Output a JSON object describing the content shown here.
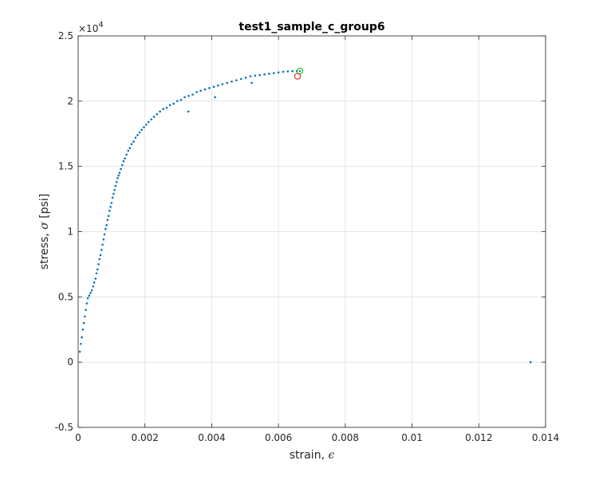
{
  "chart_data": {
    "type": "scatter",
    "title": "test1_sample_c_group6",
    "xlabel": "strain, ",
    "xlabel_symbol": "ϵ",
    "ylabel": "stress, ",
    "ylabel_symbol": "σ",
    "ylabel_unit": " [psi]",
    "y_exponent_base": "×10",
    "y_exponent_power": "4",
    "xlim": [
      0,
      0.014
    ],
    "ylim": [
      -5000,
      25000
    ],
    "x_ticks": [
      0,
      0.002,
      0.004,
      0.006,
      0.008,
      0.01,
      0.012,
      0.014
    ],
    "x_tick_labels": [
      "0",
      "0.002",
      "0.004",
      "0.006",
      "0.008",
      "0.01",
      "0.012",
      "0.014"
    ],
    "y_ticks": [
      -5000,
      0,
      5000,
      10000,
      15000,
      20000,
      25000
    ],
    "y_tick_labels": [
      "-0.5",
      "0",
      "0.5",
      "1",
      "1.5",
      "2",
      "2.5"
    ],
    "grid": true,
    "series": [
      {
        "marker": "dot",
        "color": "#0072BD",
        "points": [
          [
            5e-05,
            800
          ],
          [
            8e-05,
            1400
          ],
          [
            0.00011,
            1900
          ],
          [
            0.00014,
            2500
          ],
          [
            0.00017,
            3000
          ],
          [
            0.0002,
            3500
          ],
          [
            0.00023,
            4000
          ],
          [
            0.00026,
            4500
          ],
          [
            0.00029,
            4900
          ],
          [
            0.00033,
            5100
          ],
          [
            0.00037,
            5300
          ],
          [
            0.00041,
            5500
          ],
          [
            0.00045,
            5800
          ],
          [
            0.00048,
            6100
          ],
          [
            0.00052,
            6400
          ],
          [
            0.00055,
            6800
          ],
          [
            0.00058,
            7100
          ],
          [
            0.00061,
            7500
          ],
          [
            0.00064,
            7900
          ],
          [
            0.00067,
            8200
          ],
          [
            0.0007,
            8600
          ],
          [
            0.00073,
            9000
          ],
          [
            0.00076,
            9400
          ],
          [
            0.00079,
            9800
          ],
          [
            0.00082,
            10200
          ],
          [
            0.00085,
            10500
          ],
          [
            0.00088,
            10900
          ],
          [
            0.00091,
            11200
          ],
          [
            0.00094,
            11600
          ],
          [
            0.00097,
            11900
          ],
          [
            0.001,
            12200
          ],
          [
            0.00103,
            12600
          ],
          [
            0.00106,
            12900
          ],
          [
            0.00109,
            13200
          ],
          [
            0.00112,
            13500
          ],
          [
            0.00115,
            13800
          ],
          [
            0.00118,
            14100
          ],
          [
            0.00121,
            14300
          ],
          [
            0.00124,
            14500
          ],
          [
            0.00128,
            14800
          ],
          [
            0.00132,
            15100
          ],
          [
            0.00136,
            15400
          ],
          [
            0.0014,
            15600
          ],
          [
            0.00145,
            15900
          ],
          [
            0.0015,
            16200
          ],
          [
            0.00155,
            16400
          ],
          [
            0.0016,
            16700
          ],
          [
            0.00166,
            16900
          ],
          [
            0.00172,
            17200
          ],
          [
            0.00178,
            17400
          ],
          [
            0.00184,
            17600
          ],
          [
            0.0019,
            17800
          ],
          [
            0.00197,
            18000
          ],
          [
            0.00204,
            18200
          ],
          [
            0.00211,
            18400
          ],
          [
            0.00219,
            18600
          ],
          [
            0.00227,
            18800
          ],
          [
            0.00236,
            19000
          ],
          [
            0.00245,
            19200
          ],
          [
            0.00255,
            19400
          ],
          [
            0.00265,
            19500
          ],
          [
            0.00275,
            19700
          ],
          [
            0.00286,
            19800
          ],
          [
            0.00297,
            20000
          ],
          [
            0.00308,
            20100
          ],
          [
            0.00319,
            20300
          ],
          [
            0.00331,
            20400
          ],
          [
            0.00343,
            20500
          ],
          [
            0.00355,
            20700
          ],
          [
            0.00367,
            20800
          ],
          [
            0.0038,
            20900
          ],
          [
            0.00393,
            21000
          ],
          [
            0.00406,
            21100
          ],
          [
            0.00419,
            21200
          ],
          [
            0.00432,
            21300
          ],
          [
            0.00446,
            21400
          ],
          [
            0.0046,
            21500
          ],
          [
            0.00474,
            21600
          ],
          [
            0.00488,
            21700
          ],
          [
            0.00502,
            21800
          ],
          [
            0.00516,
            21900
          ],
          [
            0.0053,
            21950
          ],
          [
            0.00544,
            22000
          ],
          [
            0.00558,
            22050
          ],
          [
            0.00572,
            22100
          ],
          [
            0.00586,
            22150
          ],
          [
            0.006,
            22200
          ],
          [
            0.00614,
            22250
          ],
          [
            0.00628,
            22280
          ],
          [
            0.00642,
            22300
          ],
          [
            0.00655,
            22300
          ],
          [
            0.0033,
            19200
          ],
          [
            0.0041,
            20300
          ],
          [
            0.0052,
            21400
          ],
          [
            0.01355,
            0
          ]
        ]
      }
    ],
    "markers": [
      {
        "label": "green circle",
        "x": 0.00664,
        "y": 22300,
        "color": "#00CC00",
        "inner_dot": true
      },
      {
        "label": "red circle",
        "x": 0.00657,
        "y": 21900,
        "color": "#E02020",
        "inner_dot": false
      }
    ]
  }
}
